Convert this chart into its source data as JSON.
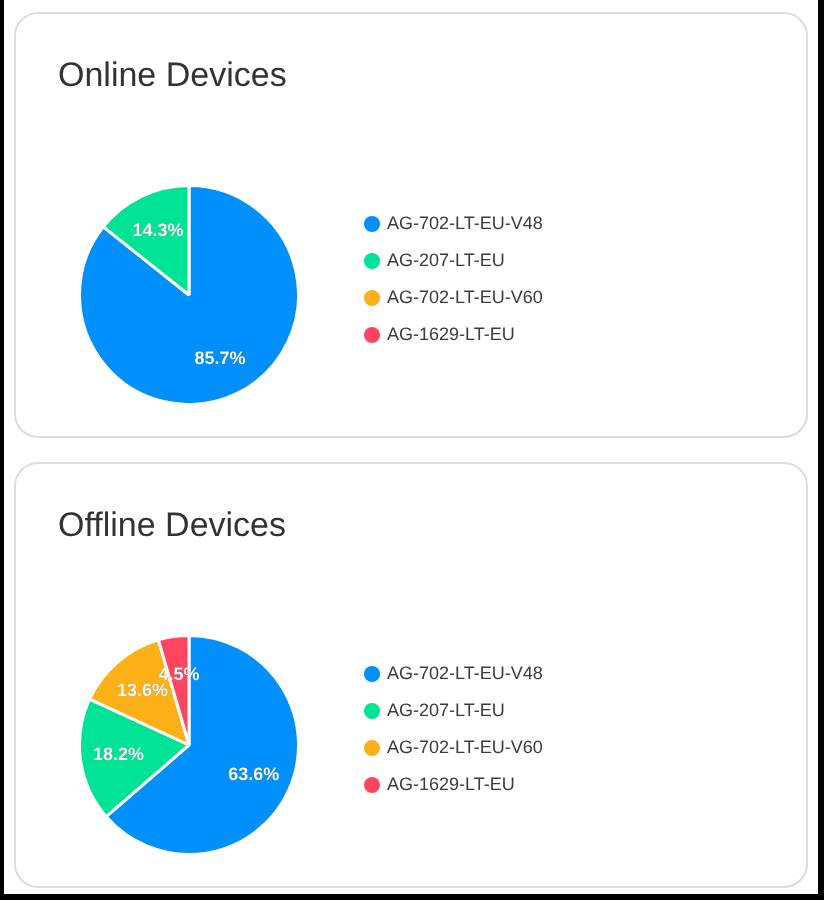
{
  "chart_data": [
    {
      "type": "pie",
      "title": "Online Devices",
      "categories": [
        "AG-702-LT-EU-V48",
        "AG-207-LT-EU",
        "AG-702-LT-EU-V60",
        "AG-1629-LT-EU"
      ],
      "values": [
        85.7,
        14.3,
        0,
        0
      ],
      "colors": [
        "#008ffb",
        "#00e396",
        "#feb019",
        "#ff4560"
      ],
      "value_labels": [
        "85.7%",
        "14.3%",
        null,
        null
      ],
      "legend": "right"
    },
    {
      "type": "pie",
      "title": "Offline Devices",
      "categories": [
        "AG-702-LT-EU-V48",
        "AG-207-LT-EU",
        "AG-702-LT-EU-V60",
        "AG-1629-LT-EU"
      ],
      "values": [
        63.6,
        18.2,
        13.6,
        4.5
      ],
      "colors": [
        "#008ffb",
        "#00e396",
        "#feb019",
        "#ff4560"
      ],
      "value_labels": [
        "63.6%",
        "18.2%",
        "13.6%",
        "4.5%"
      ],
      "legend": "right"
    }
  ]
}
